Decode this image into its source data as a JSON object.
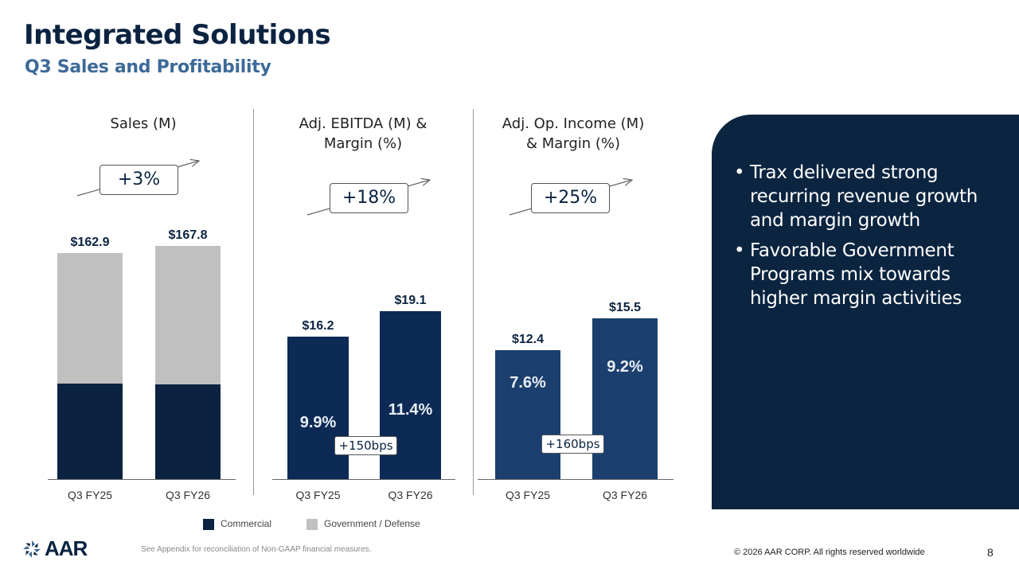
{
  "header": {
    "title": "Integrated Solutions",
    "subtitle": "Q3 Sales and Profitability"
  },
  "colors": {
    "commercial": "#0b2341",
    "government": "#c0c0c0",
    "ebitda": "#0c2a55",
    "op_income": "#1b3f6e",
    "panel": "#0b2440"
  },
  "chart_data": [
    {
      "type": "bar",
      "stacked": true,
      "title": "Sales (M)",
      "categories": [
        "Q3 FY25",
        "Q3 FY26"
      ],
      "series": [
        {
          "name": "Commercial",
          "values": [
            68.8,
            68.2
          ]
        },
        {
          "name": "Government / Defense",
          "values": [
            94.1,
            99.6
          ]
        }
      ],
      "totals": [
        "$162.9",
        "$167.8"
      ],
      "total_values": [
        162.9,
        167.8
      ],
      "change": "+3%",
      "ylim": [
        0,
        175
      ]
    },
    {
      "type": "bar",
      "title": "Adj. EBITDA (M) & Margin (%)",
      "categories": [
        "Q3 FY25",
        "Q3 FY26"
      ],
      "values": [
        16.2,
        19.1
      ],
      "value_labels": [
        "$16.2",
        "$19.1"
      ],
      "margins": [
        "9.9%",
        "11.4%"
      ],
      "change": "+18%",
      "margin_change": "+150bps",
      "ylim": [
        0,
        25
      ]
    },
    {
      "type": "bar",
      "title": "Adj. Op. Income (M) & Margin (%)",
      "categories": [
        "Q3 FY25",
        "Q3 FY26"
      ],
      "values": [
        12.4,
        15.5
      ],
      "value_labels": [
        "$12.4",
        "$15.5"
      ],
      "margins": [
        "7.6%",
        "9.2%"
      ],
      "change": "+25%",
      "margin_change": "+160bps",
      "ylim": [
        0,
        20
      ]
    }
  ],
  "chart_titles": {
    "sales_1": "Sales (M)",
    "ebitda_1": "Adj. EBITDA (M) &",
    "ebitda_2": "Margin (%)",
    "op_1": "Adj. Op. Income (M)",
    "op_2": "& Margin (%)"
  },
  "legend": {
    "commercial": "Commercial",
    "government": "Government / Defense"
  },
  "panel": {
    "bullets": [
      "Trax delivered strong recurring revenue growth and margin growth",
      "Favorable Government Programs mix towards higher margin activities"
    ]
  },
  "footer": {
    "logo": "AAR",
    "footnote": "See Appendix for reconciliation of Non-GAAP financial measures.",
    "copyright": "© 2026 AAR CORP. All rights reserved worldwide",
    "page": "8"
  }
}
